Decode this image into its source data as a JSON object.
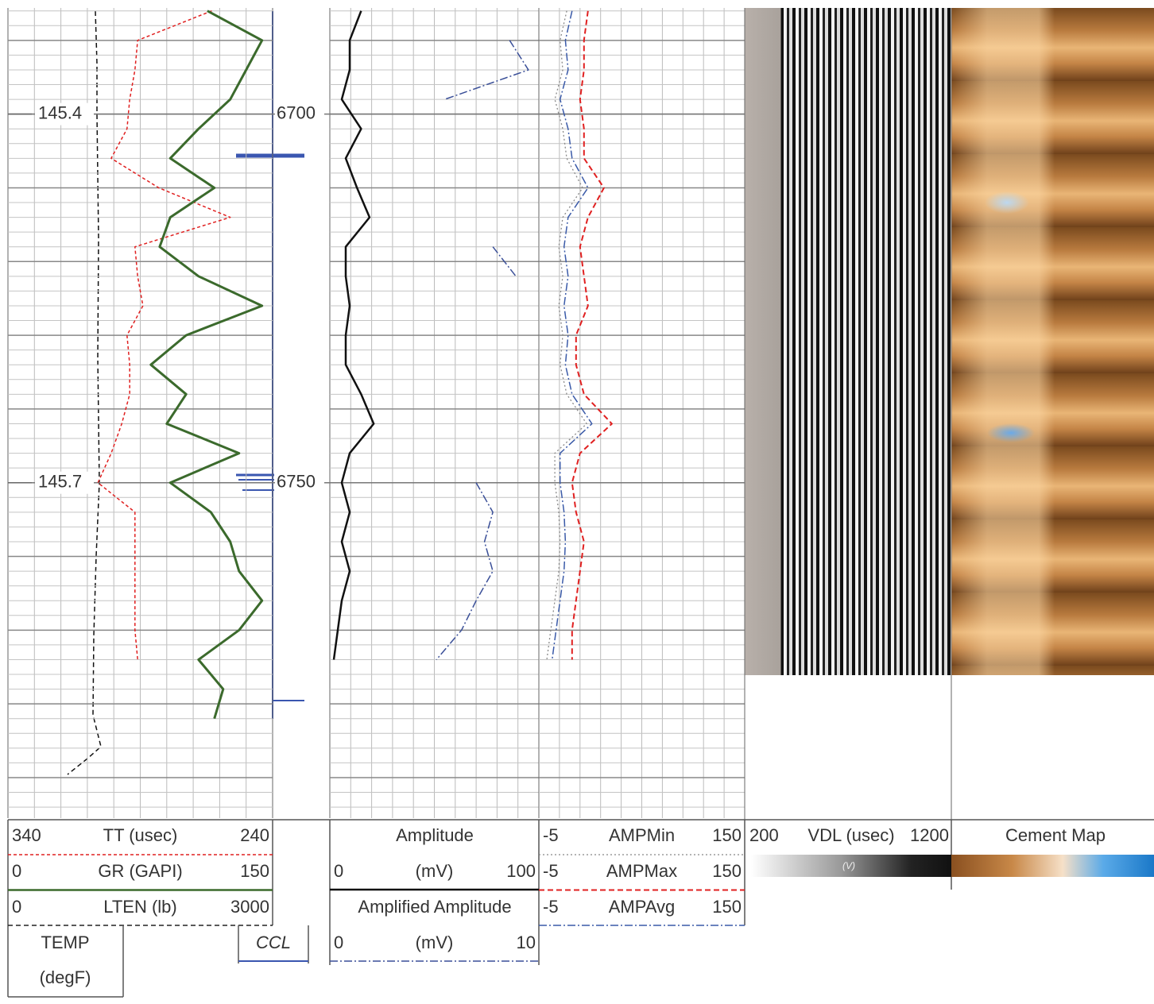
{
  "ylim": [
    6685.6,
    6795.5
  ],
  "depth_ticks": [
    6700,
    6750
  ],
  "temp_readings": [
    {
      "depth": 6700,
      "label": 145.4
    },
    {
      "depth": 6750,
      "label": 145.7
    }
  ],
  "depths": [
    6686,
    6690,
    6694,
    6698,
    6702,
    6706,
    6710,
    6714,
    6718,
    6722,
    6726,
    6730,
    6734,
    6738,
    6742,
    6746,
    6750,
    6754,
    6758,
    6762,
    6766,
    6770,
    6774,
    6778,
    6782
  ],
  "curves": [
    {
      "name": "TT (usec)",
      "track": 1,
      "scale": [
        340,
        240
      ],
      "color": "#e02020",
      "dash": "4 3",
      "width": 1.5,
      "values": [
        263,
        291,
        292,
        294,
        295,
        301,
        283,
        256,
        292,
        291,
        289,
        295,
        294,
        294,
        297,
        301,
        306,
        292,
        292,
        292,
        292,
        292,
        291,
        null,
        null
      ]
    },
    {
      "name": "GR (GAPI)",
      "track": 1,
      "scale": [
        0,
        150
      ],
      "color": "#3b6a2c",
      "dash": "",
      "width": 3,
      "values": [
        113,
        144,
        135,
        126,
        108,
        92,
        117,
        92,
        86,
        108,
        144,
        101,
        81,
        101,
        90,
        131,
        92,
        115,
        126,
        131,
        144,
        131,
        108,
        122,
        117
      ]
    },
    {
      "name": "LTEN (lb)",
      "track": 1,
      "scale": [
        0,
        3000
      ],
      "color": "#222",
      "dash": "6 4",
      "width": 1.5
    },
    {
      "name": "Amplitude",
      "unit": "(mV)",
      "track": 2,
      "scale": [
        0,
        100
      ],
      "color": "#111",
      "dash": "",
      "width": 2.5,
      "values": [
        15,
        9.5,
        9.5,
        5.7,
        15,
        7.6,
        13,
        19,
        7.6,
        7.6,
        9.5,
        7.6,
        7.6,
        15,
        21,
        9.5,
        5.7,
        9.5,
        5.7,
        9.5,
        5.7,
        3.8,
        1.9,
        null,
        null
      ]
    },
    {
      "name": "Amplified Amplitude",
      "unit": "(mV)",
      "track": 2,
      "scale": [
        0,
        10
      ],
      "color": "#3a4f98",
      "dash": "10 3 2 3",
      "width": 1.5,
      "values": [
        null,
        8.6,
        9.5,
        5.5,
        null,
        null,
        null,
        null,
        7.8,
        8.9,
        null,
        null,
        9.7,
        null,
        null,
        null,
        7.0,
        7.8,
        7.4,
        7.8,
        7.0,
        6.3,
        5.1,
        null,
        null
      ]
    },
    {
      "name": "AMPMin",
      "track": 3,
      "scale": [
        -5,
        150
      ],
      "color": "#888",
      "dash": "2 3",
      "width": 1.3,
      "values": [
        16,
        11,
        13,
        7,
        13,
        16,
        28,
        13,
        10,
        13,
        10,
        13,
        11,
        16,
        31,
        7,
        7,
        10,
        11,
        10,
        7,
        4,
        1,
        null,
        null
      ]
    },
    {
      "name": "AMPMax",
      "track": 3,
      "scale": [
        -5,
        150
      ],
      "color": "#e02020",
      "dash": "7 4",
      "width": 2,
      "values": [
        32,
        29,
        29,
        26,
        29,
        29,
        44,
        32,
        26,
        29,
        32,
        23,
        23,
        29,
        50,
        26,
        20,
        23,
        29,
        26,
        23,
        20,
        20,
        null,
        null
      ]
    },
    {
      "name": "AMPAvg",
      "track": 3,
      "scale": [
        -5,
        150
      ],
      "color": "#3a5aa8",
      "dash": "10 3 2 3",
      "width": 1.5,
      "values": [
        20,
        15,
        17,
        11,
        17,
        20,
        32,
        17,
        14,
        17,
        14,
        17,
        15,
        20,
        35,
        11,
        11,
        14,
        15,
        14,
        11,
        8,
        5,
        null,
        null
      ]
    }
  ],
  "temp_title": [
    "TEMP",
    "(degF)"
  ],
  "ccl": "CCL",
  "vdl": {
    "scale": [
      200,
      1200
    ],
    "name": "VDL (usec)",
    "bar_label": "(V)"
  },
  "cement_map": "Cement Map"
}
